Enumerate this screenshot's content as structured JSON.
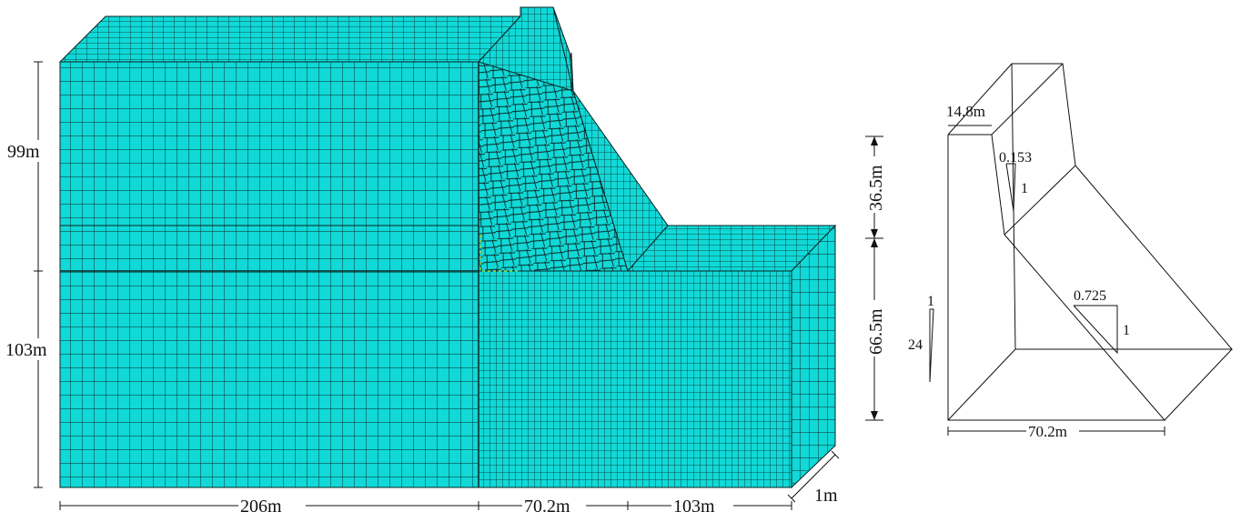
{
  "left_figure": {
    "fill_color": "#10d9d7",
    "mesh_color": "#0d2424",
    "top_highlight_color": "#8ff2f1",
    "dimensions": {
      "dam_height": "99m",
      "foundation_depth": "103m",
      "upstream_length": "206m",
      "dam_base_width": "70.2m",
      "downstream_length": "103m",
      "thickness": "1m"
    }
  },
  "right_figure": {
    "dimensions": {
      "crest_width": "14.8m",
      "upper_height": "36.5m",
      "lower_height": "66.5m",
      "base_width": "70.2m"
    },
    "slopes": {
      "upper_downstream_ratio": "0.153",
      "upper_downstream_unit": "1",
      "lower_downstream_ratio": "0.725",
      "lower_downstream_unit": "1",
      "upstream_unit": "1",
      "upstream_ratio": "24"
    }
  }
}
